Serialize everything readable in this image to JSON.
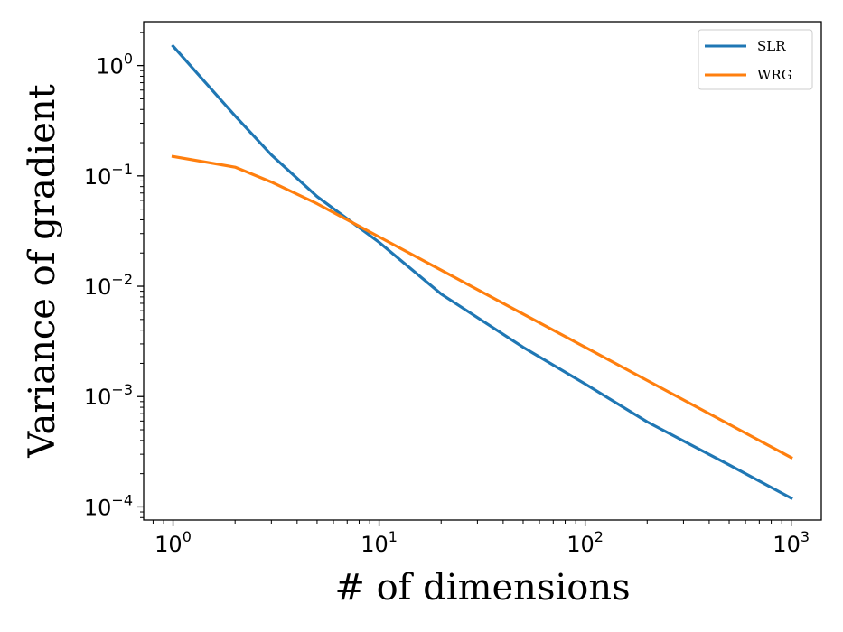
{
  "chart_data": {
    "type": "line",
    "xlabel": "# of dimensions",
    "ylabel": "Variance of gradient",
    "xscale": "log",
    "yscale": "log",
    "xlim": [
      0.72,
      1400
    ],
    "ylim": [
      7.6e-05,
      2.5
    ],
    "x_ticks": [
      {
        "base": "10",
        "exp": "0",
        "value": 1
      },
      {
        "base": "10",
        "exp": "1",
        "value": 10
      },
      {
        "base": "10",
        "exp": "2",
        "value": 100
      },
      {
        "base": "10",
        "exp": "3",
        "value": 1000
      }
    ],
    "y_ticks": [
      {
        "base": "10",
        "exp": "0",
        "value": 1
      },
      {
        "base": "10",
        "exp": "−1",
        "value": 0.1
      },
      {
        "base": "10",
        "exp": "−2",
        "value": 0.01
      },
      {
        "base": "10",
        "exp": "−3",
        "value": 0.001
      },
      {
        "base": "10",
        "exp": "−4",
        "value": 0.0001
      }
    ],
    "grid": false,
    "legend_position": "top-right",
    "series": [
      {
        "name": "SLR",
        "color": "#1f77b4",
        "x": [
          1,
          2,
          3,
          5,
          10,
          20,
          50,
          100,
          200,
          500,
          1000
        ],
        "y": [
          1.5,
          0.35,
          0.155,
          0.065,
          0.025,
          0.0085,
          0.0028,
          0.0013,
          0.00059,
          0.00024,
          0.00012
        ]
      },
      {
        "name": "WRG",
        "color": "#ff7f0e",
        "x": [
          1,
          2,
          3,
          5,
          10,
          20,
          50,
          100,
          200,
          500,
          1000
        ],
        "y": [
          0.15,
          0.12,
          0.088,
          0.056,
          0.028,
          0.014,
          0.0056,
          0.0028,
          0.0014,
          0.00056,
          0.00028
        ]
      }
    ]
  }
}
